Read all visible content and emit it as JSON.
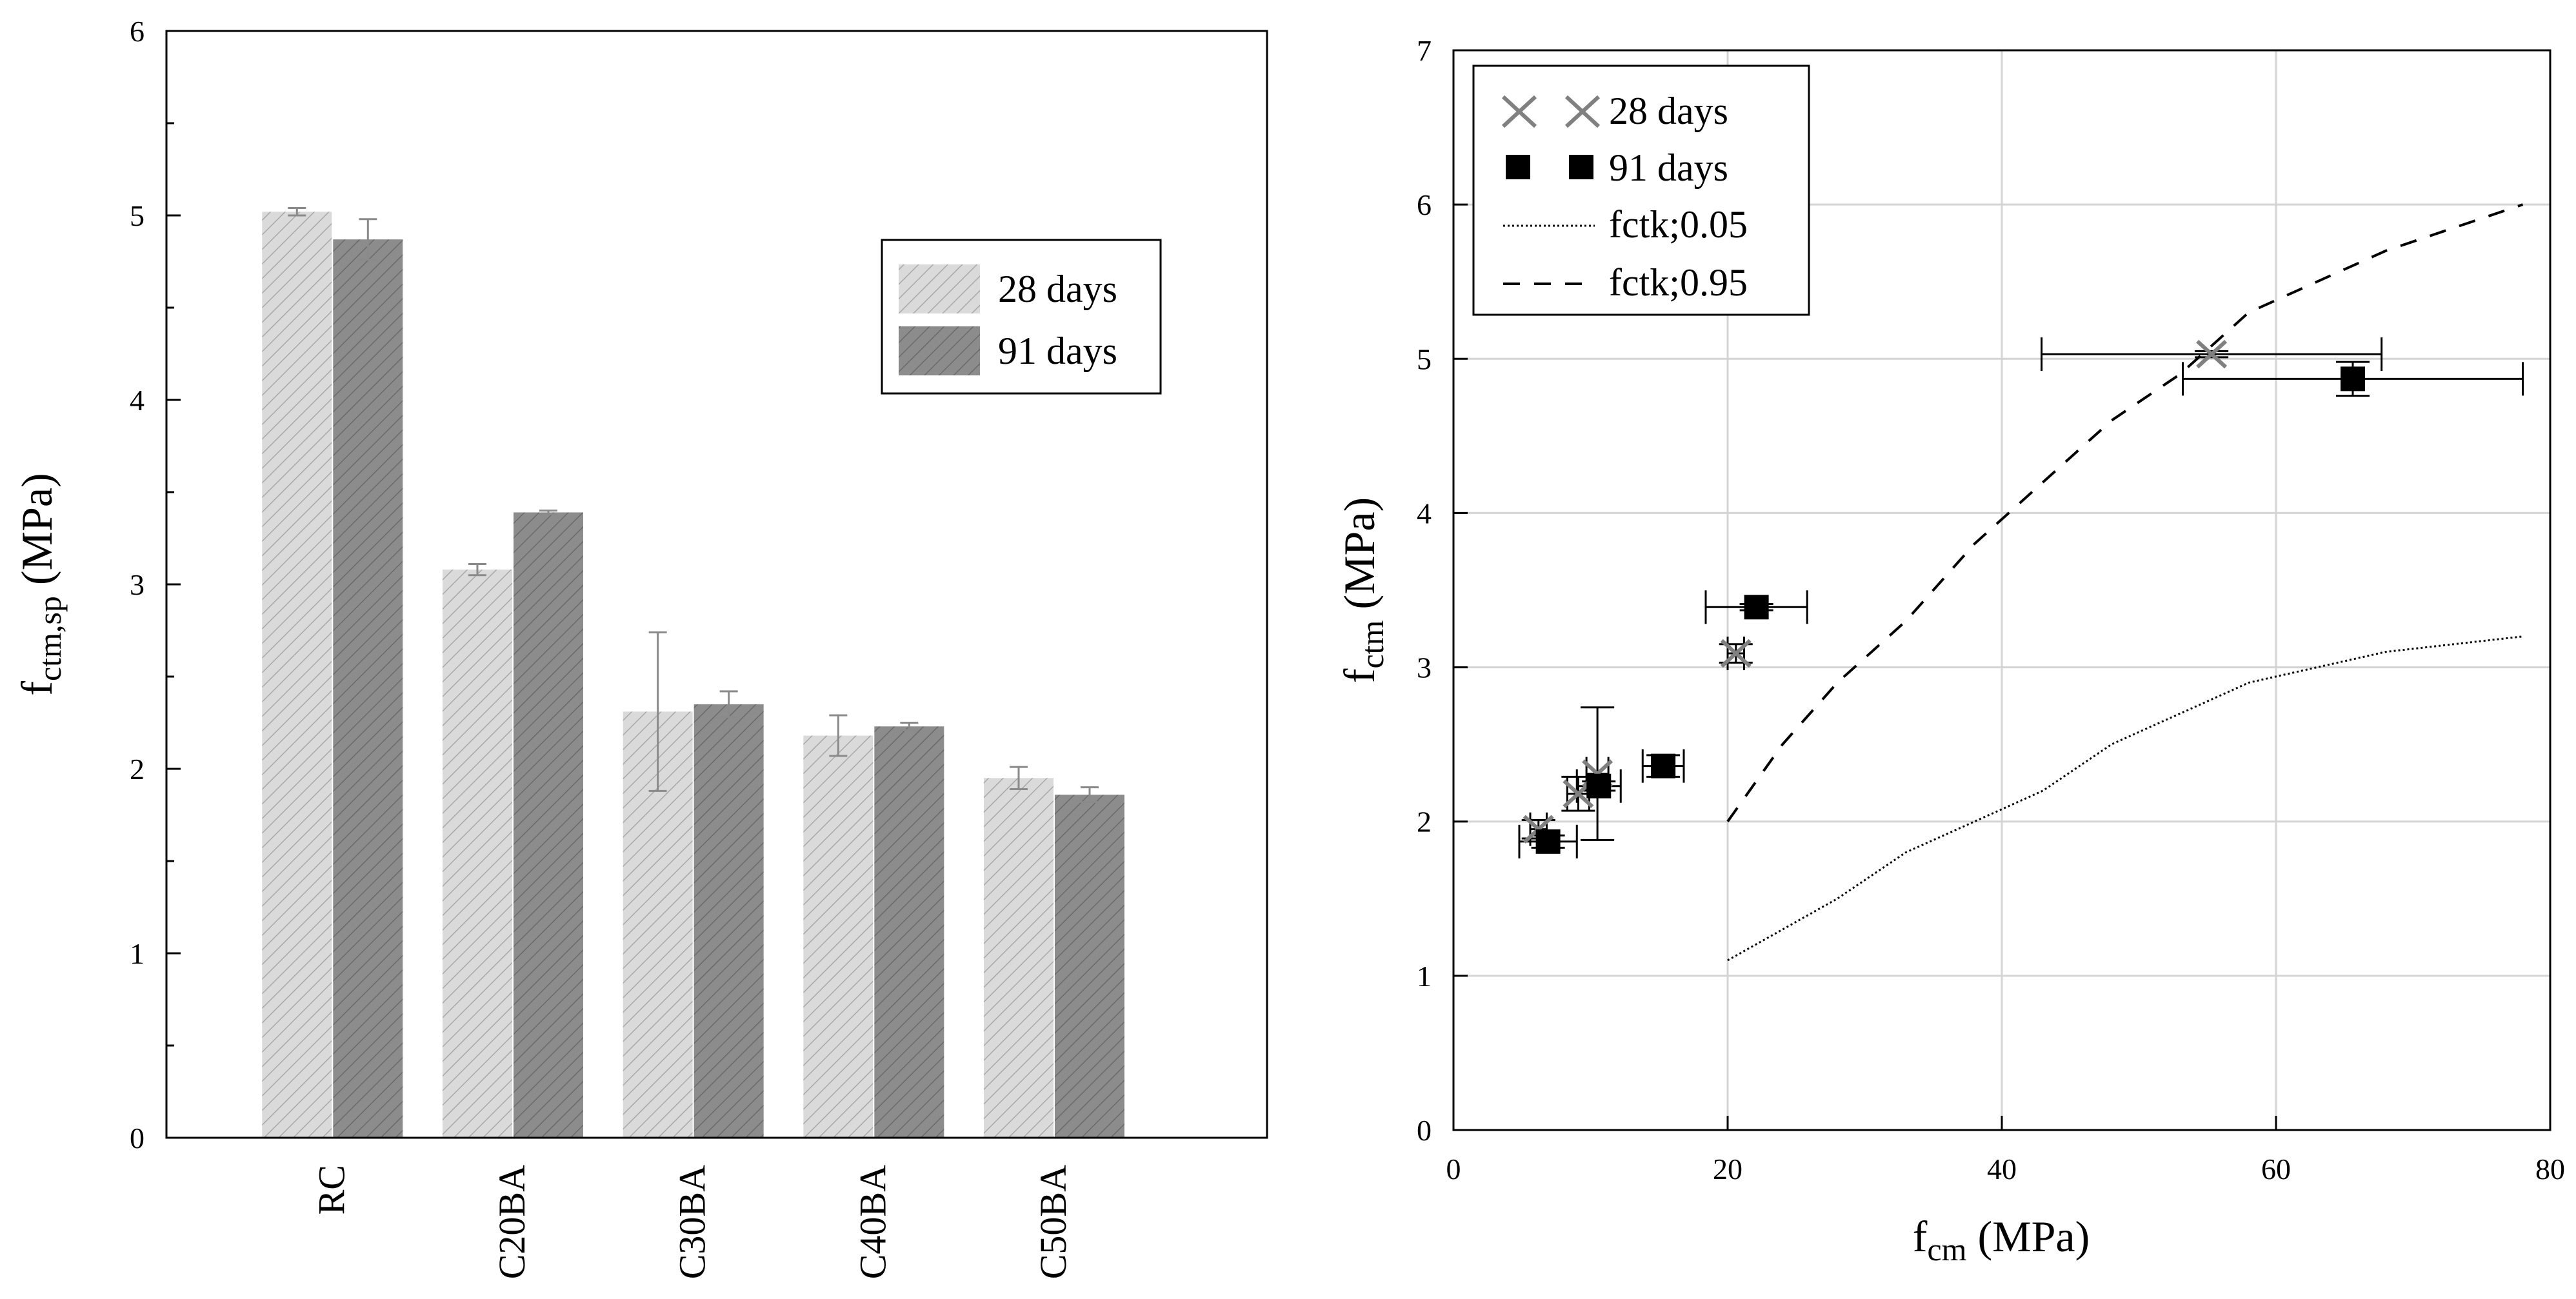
{
  "chart_data": [
    {
      "type": "bar",
      "ylabel_main": "f",
      "ylabel_sub": "ctm,sp",
      "ylabel_unit": " (MPa)",
      "xlabel": "",
      "ylim": [
        0,
        6
      ],
      "yticks": [
        "0",
        "1",
        "2",
        "3",
        "4",
        "5",
        "6"
      ],
      "categories": [
        "RC",
        "C20BA",
        "C30BA",
        "C40BA",
        "C50BA"
      ],
      "series": [
        {
          "name": "28 days",
          "values": [
            5.02,
            3.08,
            2.31,
            2.18,
            1.95
          ],
          "errors": [
            0.02,
            0.03,
            0.43,
            0.11,
            0.06
          ],
          "color": "#d6d6d6"
        },
        {
          "name": "91 days",
          "values": [
            4.87,
            3.39,
            2.35,
            2.23,
            1.86
          ],
          "errors": [
            0.11,
            0.01,
            0.07,
            0.02,
            0.04
          ],
          "color": "#8a8a8a"
        }
      ],
      "legend": {
        "position": "upper-right",
        "entries": [
          "28 days",
          "91 days"
        ]
      },
      "grid": false
    },
    {
      "type": "scatter",
      "xlabel_main": "f",
      "xlabel_sub": "cm",
      "xlabel_unit": " (MPa)",
      "ylabel_main": "f",
      "ylabel_sub": "ctm",
      "ylabel_unit": " (MPa)",
      "xlim": [
        0,
        80
      ],
      "ylim": [
        0,
        7
      ],
      "xticks": [
        "0",
        "20",
        "40",
        "60",
        "80"
      ],
      "yticks": [
        "0",
        "1",
        "2",
        "3",
        "4",
        "5",
        "6",
        "7"
      ],
      "grid": true,
      "legend": {
        "position": "upper-left",
        "entries": [
          "28 days",
          "91 days",
          "fctk;0.05",
          "fctk;0.95"
        ]
      },
      "series": [
        {
          "name": "28 days",
          "marker": "x",
          "points": [
            {
              "x": 55.3,
              "y": 5.03,
              "xerr": 12.4,
              "yerr": 0.02
            },
            {
              "x": 20.6,
              "y": 3.09,
              "xerr": 0.6,
              "yerr": 0.06
            },
            {
              "x": 10.5,
              "y": 2.31,
              "xerr": 0.8,
              "yerr": 0.43
            },
            {
              "x": 9.1,
              "y": 2.18,
              "xerr": 0.8,
              "yerr": 0.11
            },
            {
              "x": 6.2,
              "y": 1.95,
              "xerr": 0.6,
              "yerr": 0.06
            }
          ]
        },
        {
          "name": "91 days",
          "marker": "square",
          "points": [
            {
              "x": 65.6,
              "y": 4.87,
              "xerr": 12.4,
              "yerr": 0.11
            },
            {
              "x": 22.1,
              "y": 3.39,
              "xerr": 3.7,
              "yerr": 0.02
            },
            {
              "x": 15.3,
              "y": 2.36,
              "xerr": 1.5,
              "yerr": 0.07
            },
            {
              "x": 10.6,
              "y": 2.23,
              "xerr": 1.6,
              "yerr": 0.03
            },
            {
              "x": 6.9,
              "y": 1.87,
              "xerr": 2.1,
              "yerr": 0.04
            }
          ]
        },
        {
          "name": "fctk;0.05",
          "style": "dotted",
          "x": [
            20,
            28,
            33,
            38,
            43,
            48,
            53,
            58,
            63,
            68,
            73,
            78
          ],
          "y": [
            1.1,
            1.5,
            1.8,
            2.0,
            2.2,
            2.5,
            2.7,
            2.9,
            3.0,
            3.1,
            3.15,
            3.2
          ]
        },
        {
          "name": "fctk;0.95",
          "style": "dashed",
          "x": [
            20,
            24,
            28,
            33,
            38,
            43,
            48,
            53,
            58,
            63,
            68,
            73,
            78
          ],
          "y": [
            2.0,
            2.5,
            2.9,
            3.3,
            3.8,
            4.2,
            4.6,
            4.9,
            5.3,
            5.5,
            5.7,
            5.85,
            6.0
          ]
        }
      ]
    }
  ]
}
